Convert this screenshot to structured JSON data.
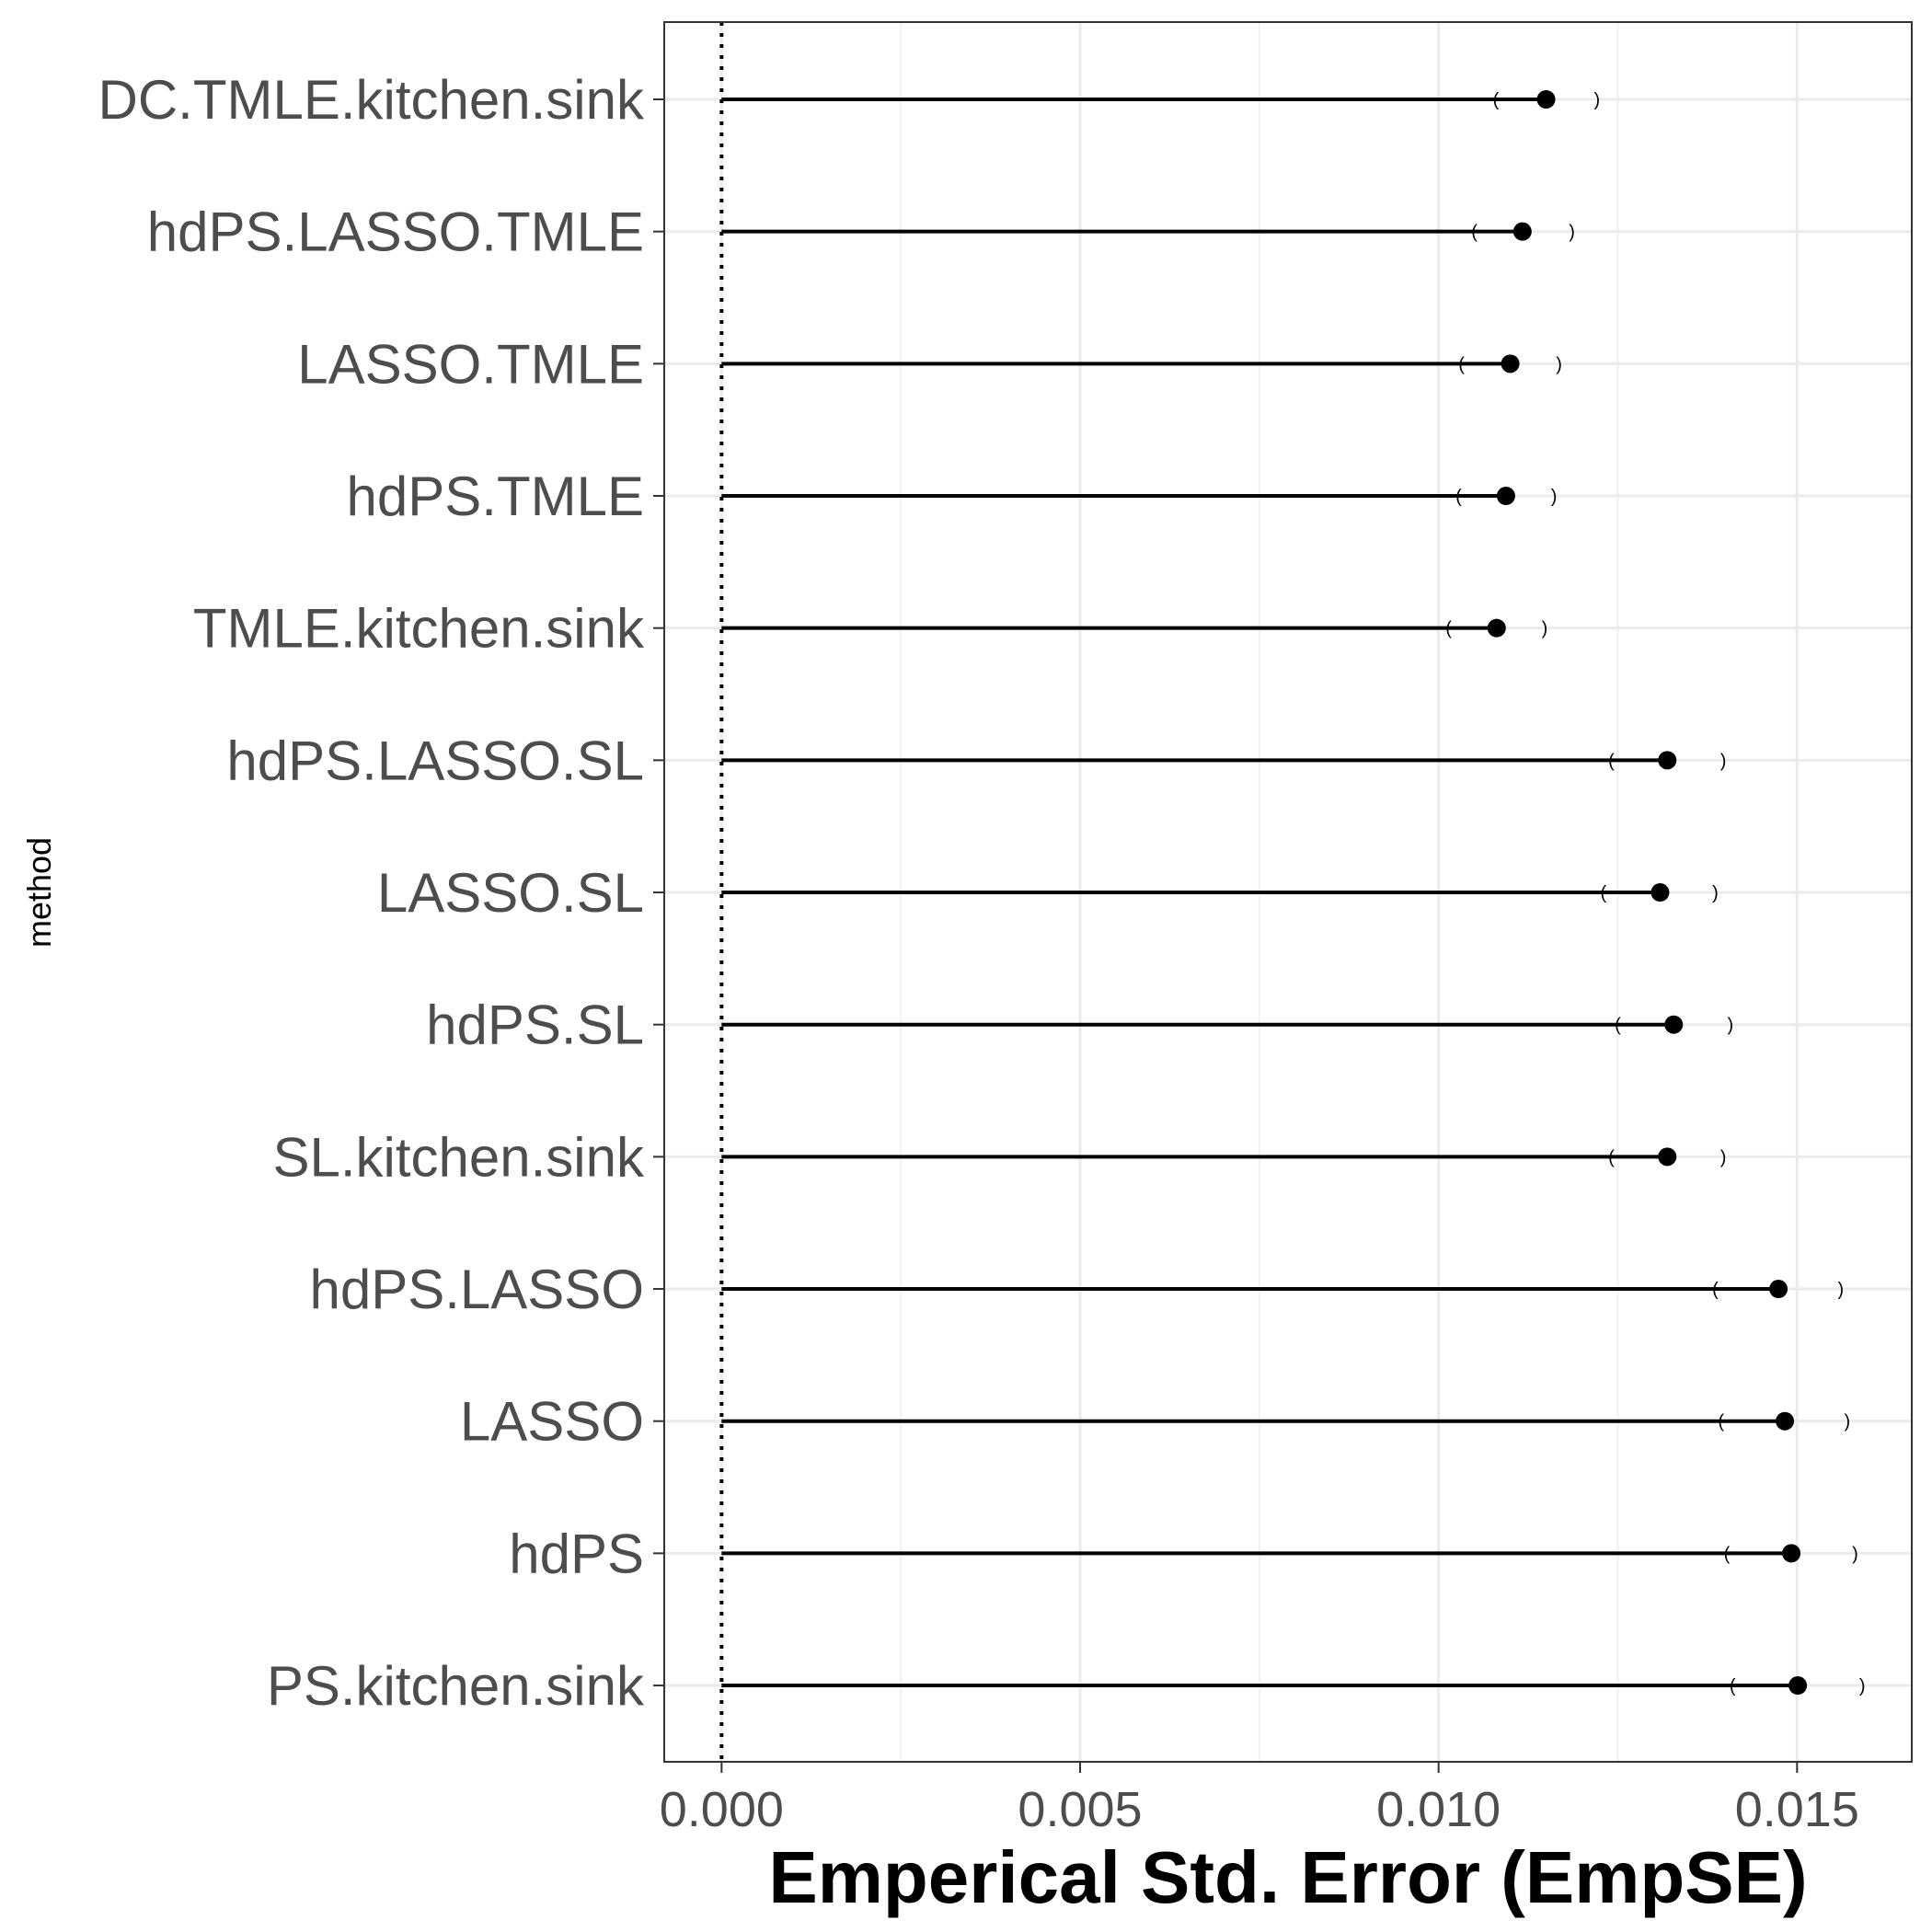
{
  "chart_data": {
    "type": "dot",
    "title": "",
    "xlabel": "Emperical Std. Error (EmpSE)",
    "ylabel": "method",
    "xlim": [
      -0.0008,
      0.0166
    ],
    "x_ticks": [
      0.0,
      0.005,
      0.01,
      0.015
    ],
    "x_tick_labels": [
      "0.000",
      "0.005",
      "0.010",
      "0.015"
    ],
    "reference_line": {
      "x": 0.0,
      "style": "dotted"
    },
    "grid": true,
    "colors": {
      "grid": "#ebebeb",
      "grid_minor": "#f2f2f2",
      "frame": "#333333",
      "mark": "#000000",
      "tick_text": "#4d4d4d"
    },
    "categories": [
      "DC.TMLE.kitchen.sink",
      "hdPS.LASSO.TMLE",
      "LASSO.TMLE",
      "hdPS.TMLE",
      "TMLE.kitchen.sink",
      "hdPS.LASSO.SL",
      "LASSO.SL",
      "hdPS.SL",
      "SL.kitchen.sink",
      "hdPS.LASSO",
      "LASSO",
      "hdPS",
      "PS.kitchen.sink"
    ],
    "values": [
      0.0115,
      0.01117,
      0.011,
      0.01094,
      0.01081,
      0.01319,
      0.01309,
      0.01328,
      0.01319,
      0.01474,
      0.01483,
      0.01492,
      0.01501
    ],
    "ci_lower": [
      0.0108,
      0.0105,
      0.01032,
      0.01028,
      0.01014,
      0.01241,
      0.0123,
      0.0125,
      0.01241,
      0.01386,
      0.01394,
      0.01402,
      0.0141
    ],
    "ci_upper": [
      0.01221,
      0.01186,
      0.01168,
      0.01161,
      0.01148,
      0.01397,
      0.01386,
      0.01407,
      0.01397,
      0.01561,
      0.0157,
      0.01581,
      0.01591
    ]
  }
}
